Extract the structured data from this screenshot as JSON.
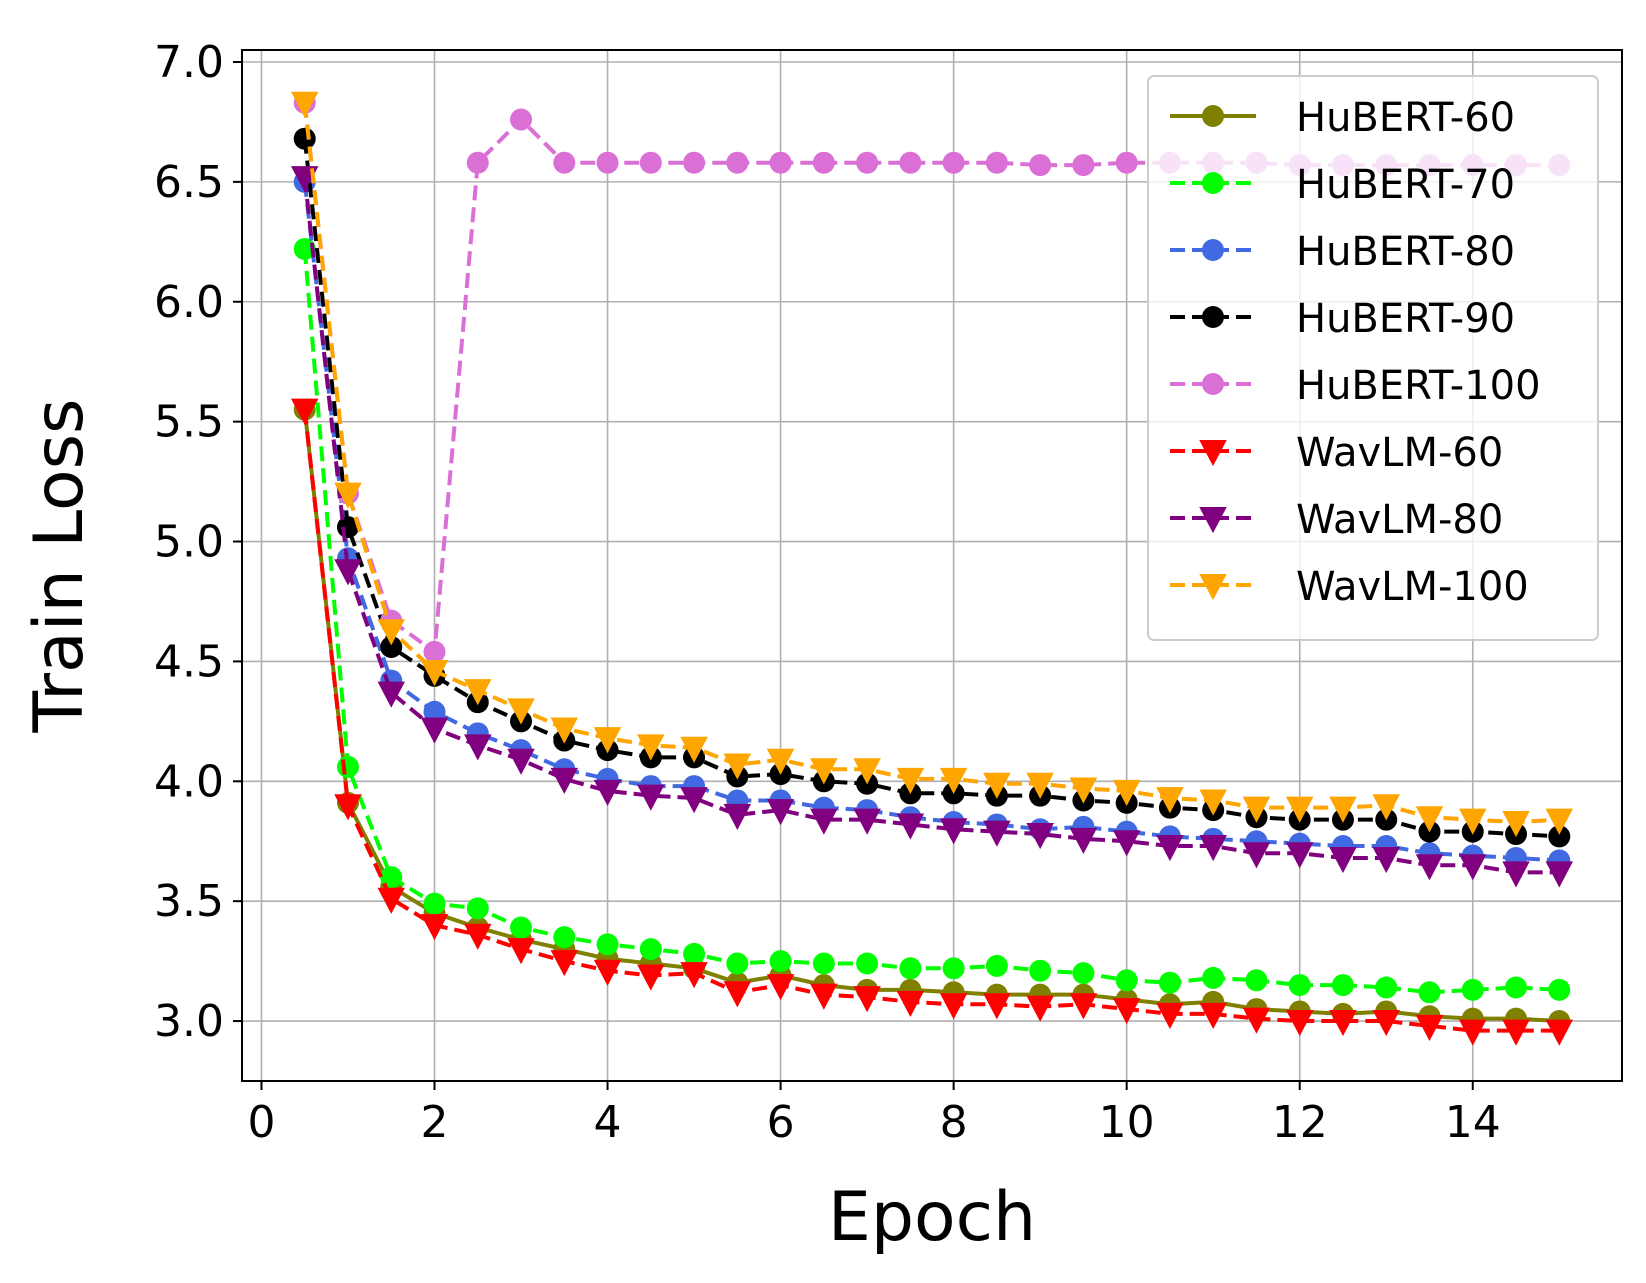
{
  "chart_data": {
    "type": "line",
    "title": "",
    "xlabel": "Epoch",
    "ylabel": "Train Loss",
    "xlim": [
      -0.225,
      15.725
    ],
    "ylim": [
      2.75,
      7.05
    ],
    "xticks": [
      0,
      2,
      4,
      6,
      8,
      10,
      12,
      14
    ],
    "yticks": [
      3.0,
      3.5,
      4.0,
      4.5,
      5.0,
      5.5,
      6.0,
      6.5,
      7.0
    ],
    "ytick_labels": [
      "3.0",
      "3.5",
      "4.0",
      "4.5",
      "5.0",
      "5.5",
      "6.0",
      "6.5",
      "7.0"
    ],
    "grid": true,
    "legend_position": "top-right",
    "x": [
      0.5,
      1,
      1.5,
      2,
      2.5,
      3,
      3.5,
      4,
      4.5,
      5,
      5.5,
      6,
      6.5,
      7,
      7.5,
      8,
      8.5,
      9,
      9.5,
      10,
      10.5,
      11,
      11.5,
      12,
      12.5,
      13,
      13.5,
      14,
      14.5,
      15
    ],
    "series": [
      {
        "name": "HuBERT-60",
        "color": "#808000",
        "marker": "circle",
        "dash": "solid",
        "values": [
          5.55,
          3.91,
          3.56,
          3.45,
          3.39,
          3.34,
          3.3,
          3.26,
          3.24,
          3.22,
          3.16,
          3.19,
          3.15,
          3.13,
          3.13,
          3.12,
          3.11,
          3.11,
          3.11,
          3.09,
          3.07,
          3.08,
          3.05,
          3.04,
          3.03,
          3.04,
          3.02,
          3.01,
          3.01,
          3.0
        ]
      },
      {
        "name": "HuBERT-70",
        "color": "#00ff00",
        "marker": "circle",
        "dash": "dashed",
        "values": [
          6.22,
          4.06,
          3.6,
          3.49,
          3.47,
          3.39,
          3.35,
          3.32,
          3.3,
          3.28,
          3.24,
          3.25,
          3.24,
          3.24,
          3.22,
          3.22,
          3.23,
          3.21,
          3.2,
          3.17,
          3.16,
          3.18,
          3.17,
          3.15,
          3.15,
          3.14,
          3.12,
          3.13,
          3.14,
          3.13
        ]
      },
      {
        "name": "HuBERT-80",
        "color": "#4169e1",
        "marker": "circle",
        "dash": "dashed",
        "values": [
          6.5,
          4.93,
          4.42,
          4.29,
          4.2,
          4.13,
          4.05,
          4.01,
          3.98,
          3.98,
          3.92,
          3.92,
          3.89,
          3.88,
          3.85,
          3.83,
          3.82,
          3.8,
          3.81,
          3.79,
          3.77,
          3.76,
          3.75,
          3.74,
          3.73,
          3.73,
          3.7,
          3.69,
          3.68,
          3.67
        ]
      },
      {
        "name": "HuBERT-90",
        "color": "#000000",
        "marker": "circle",
        "dash": "dashed",
        "values": [
          6.68,
          5.06,
          4.56,
          4.44,
          4.33,
          4.25,
          4.17,
          4.13,
          4.1,
          4.1,
          4.02,
          4.03,
          4.0,
          3.99,
          3.95,
          3.95,
          3.94,
          3.94,
          3.92,
          3.91,
          3.89,
          3.88,
          3.85,
          3.84,
          3.84,
          3.84,
          3.79,
          3.79,
          3.78,
          3.77
        ]
      },
      {
        "name": "HuBERT-100",
        "color": "#da70d6",
        "marker": "circle",
        "dash": "dashed",
        "values": [
          6.83,
          5.2,
          4.67,
          4.54,
          6.58,
          6.76,
          6.58,
          6.58,
          6.58,
          6.58,
          6.58,
          6.58,
          6.58,
          6.58,
          6.58,
          6.58,
          6.58,
          6.57,
          6.57,
          6.58,
          6.58,
          6.58,
          6.58,
          6.57,
          6.57,
          6.57,
          6.57,
          6.57,
          6.57,
          6.57
        ]
      },
      {
        "name": "WavLM-60",
        "color": "#ff0000",
        "marker": "triangle-down",
        "dash": "dashed",
        "values": [
          5.55,
          3.9,
          3.51,
          3.4,
          3.36,
          3.3,
          3.25,
          3.21,
          3.19,
          3.2,
          3.12,
          3.15,
          3.11,
          3.1,
          3.08,
          3.07,
          3.07,
          3.06,
          3.07,
          3.05,
          3.03,
          3.03,
          3.01,
          3.0,
          3.0,
          3.0,
          2.98,
          2.96,
          2.96,
          2.96
        ]
      },
      {
        "name": "WavLM-80",
        "color": "#800080",
        "marker": "triangle-down",
        "dash": "dashed",
        "values": [
          6.52,
          4.88,
          4.37,
          4.22,
          4.15,
          4.09,
          4.01,
          3.96,
          3.94,
          3.93,
          3.86,
          3.88,
          3.84,
          3.84,
          3.82,
          3.8,
          3.79,
          3.78,
          3.76,
          3.75,
          3.73,
          3.73,
          3.7,
          3.7,
          3.68,
          3.68,
          3.65,
          3.65,
          3.62,
          3.62
        ]
      },
      {
        "name": "WavLM-100",
        "color": "#ffa500",
        "marker": "triangle-down",
        "dash": "dashed",
        "values": [
          6.83,
          5.2,
          4.63,
          4.46,
          4.38,
          4.3,
          4.22,
          4.18,
          4.15,
          4.14,
          4.07,
          4.09,
          4.05,
          4.05,
          4.01,
          4.01,
          3.99,
          3.99,
          3.97,
          3.96,
          3.93,
          3.92,
          3.89,
          3.89,
          3.89,
          3.9,
          3.85,
          3.84,
          3.83,
          3.84
        ]
      }
    ]
  }
}
